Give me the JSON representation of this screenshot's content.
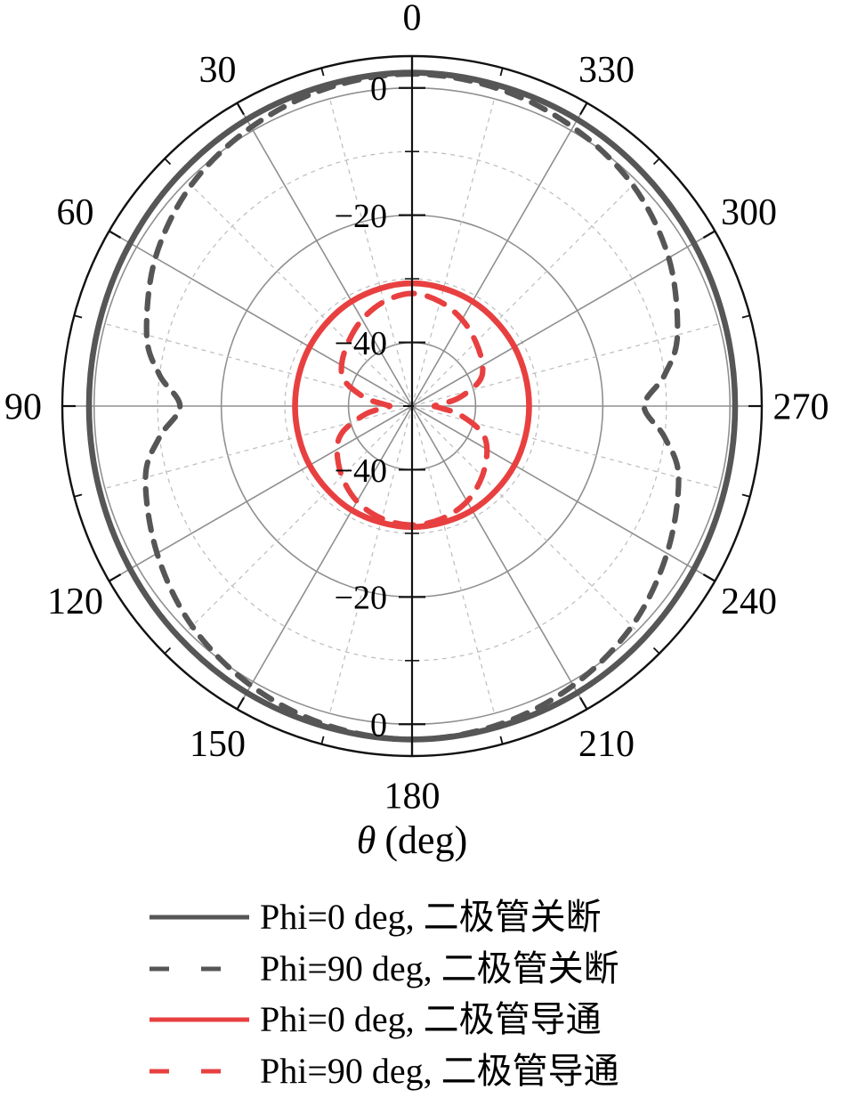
{
  "chart_data": {
    "type": "line",
    "subtype": "polar",
    "title": "",
    "xlabel": "θ (deg)",
    "xlabel_symbol": "θ",
    "xlabel_unit": "(deg)",
    "rlim": [
      -50,
      5
    ],
    "r_unit": "dB",
    "r_major_gridlines": [
      0,
      -20,
      -40
    ],
    "r_minor_gridlines": [
      -10,
      -30
    ],
    "r_tick_labels": [
      {
        "value": 0,
        "label": "0"
      },
      {
        "value": -20,
        "label": "−20"
      },
      {
        "value": -40,
        "label": "−40"
      }
    ],
    "theta_major_step_deg": 30,
    "theta_minor_step_deg": 15,
    "theta_direction": "counterclockwise-from-top",
    "theta_tick_labels": [
      "0",
      "30",
      "60",
      "90",
      "120",
      "150",
      "180",
      "210",
      "240",
      "270",
      "300",
      "330"
    ],
    "grid": {
      "major_color": "#8f8f8f",
      "minor_color": "#bcbcbc",
      "spine_color": "#111111"
    },
    "series": [
      {
        "name": "Phi=0 deg, 二极管关断",
        "style": "solid",
        "color": "#565656",
        "points_deg_db": [
          [
            0,
            2.4
          ],
          [
            15,
            2.2
          ],
          [
            30,
            2.0
          ],
          [
            45,
            1.6
          ],
          [
            60,
            1.2
          ],
          [
            75,
            0.9
          ],
          [
            90,
            0.8
          ],
          [
            105,
            0.9
          ],
          [
            120,
            1.2
          ],
          [
            135,
            1.6
          ],
          [
            150,
            2.0
          ],
          [
            165,
            2.2
          ],
          [
            180,
            2.4
          ],
          [
            195,
            2.2
          ],
          [
            210,
            2.0
          ],
          [
            225,
            1.6
          ],
          [
            240,
            1.2
          ],
          [
            255,
            0.9
          ],
          [
            270,
            0.8
          ],
          [
            285,
            0.9
          ],
          [
            300,
            1.2
          ],
          [
            315,
            1.6
          ],
          [
            330,
            2.0
          ],
          [
            345,
            2.2
          ]
        ]
      },
      {
        "name": "Phi=90 deg, 二极管关断",
        "style": "dashed",
        "color": "#565656",
        "points_deg_db": [
          [
            0,
            2.2
          ],
          [
            15,
            1.7
          ],
          [
            30,
            0.6
          ],
          [
            45,
            -0.9
          ],
          [
            60,
            -3.4
          ],
          [
            75,
            -6.8
          ],
          [
            83,
            -10.0
          ],
          [
            90,
            -13.5
          ],
          [
            97,
            -10.0
          ],
          [
            105,
            -6.6
          ],
          [
            120,
            -3.7
          ],
          [
            135,
            -1.1
          ],
          [
            150,
            0.7
          ],
          [
            165,
            1.9
          ],
          [
            180,
            2.4
          ],
          [
            195,
            1.9
          ],
          [
            210,
            0.7
          ],
          [
            225,
            -1.1
          ],
          [
            240,
            -3.7
          ],
          [
            255,
            -6.6
          ],
          [
            263,
            -10.0
          ],
          [
            270,
            -13.5
          ],
          [
            277,
            -10.0
          ],
          [
            285,
            -6.8
          ],
          [
            300,
            -3.4
          ],
          [
            315,
            -0.9
          ],
          [
            330,
            0.6
          ],
          [
            345,
            1.7
          ]
        ]
      },
      {
        "name": "Phi=0 deg, 二极管导通",
        "style": "solid",
        "color": "#e84040",
        "points_deg_db": [
          [
            0,
            -30.7
          ],
          [
            30,
            -31.0
          ],
          [
            60,
            -31.4
          ],
          [
            90,
            -31.6
          ],
          [
            120,
            -31.4
          ],
          [
            150,
            -31.1
          ],
          [
            180,
            -31.0
          ],
          [
            210,
            -31.1
          ],
          [
            240,
            -31.4
          ],
          [
            270,
            -31.6
          ],
          [
            300,
            -31.4
          ],
          [
            330,
            -31.0
          ]
        ]
      },
      {
        "name": "Phi=90 deg, 二极管导通",
        "style": "dashed",
        "color": "#e84040",
        "points_deg_db": [
          [
            0,
            -32.3
          ],
          [
            15,
            -33.0
          ],
          [
            30,
            -34.3
          ],
          [
            45,
            -35.8
          ],
          [
            60,
            -37.2
          ],
          [
            70,
            -38.8
          ],
          [
            80,
            -42.5
          ],
          [
            86,
            -45.5
          ],
          [
            90,
            -46.5
          ],
          [
            94,
            -45.5
          ],
          [
            100,
            -42.5
          ],
          [
            110,
            -38.5
          ],
          [
            120,
            -36.4
          ],
          [
            135,
            -34.4
          ],
          [
            150,
            -32.7
          ],
          [
            165,
            -31.7
          ],
          [
            180,
            -31.3
          ],
          [
            195,
            -31.7
          ],
          [
            210,
            -32.7
          ],
          [
            225,
            -34.4
          ],
          [
            240,
            -36.4
          ],
          [
            250,
            -38.5
          ],
          [
            260,
            -42.5
          ],
          [
            266,
            -45.5
          ],
          [
            270,
            -46.5
          ],
          [
            274,
            -45.5
          ],
          [
            280,
            -42.5
          ],
          [
            290,
            -38.8
          ],
          [
            300,
            -37.2
          ],
          [
            315,
            -35.8
          ],
          [
            330,
            -34.3
          ],
          [
            345,
            -33.0
          ]
        ]
      }
    ],
    "legend_position": "bottom"
  },
  "legend": {
    "items": [
      {
        "label": "Phi=0 deg, 二极管关断"
      },
      {
        "label": "Phi=90 deg, 二极管关断"
      },
      {
        "label": "Phi=0 deg, 二极管导通"
      },
      {
        "label": "Phi=90 deg, 二极管导通"
      }
    ]
  }
}
